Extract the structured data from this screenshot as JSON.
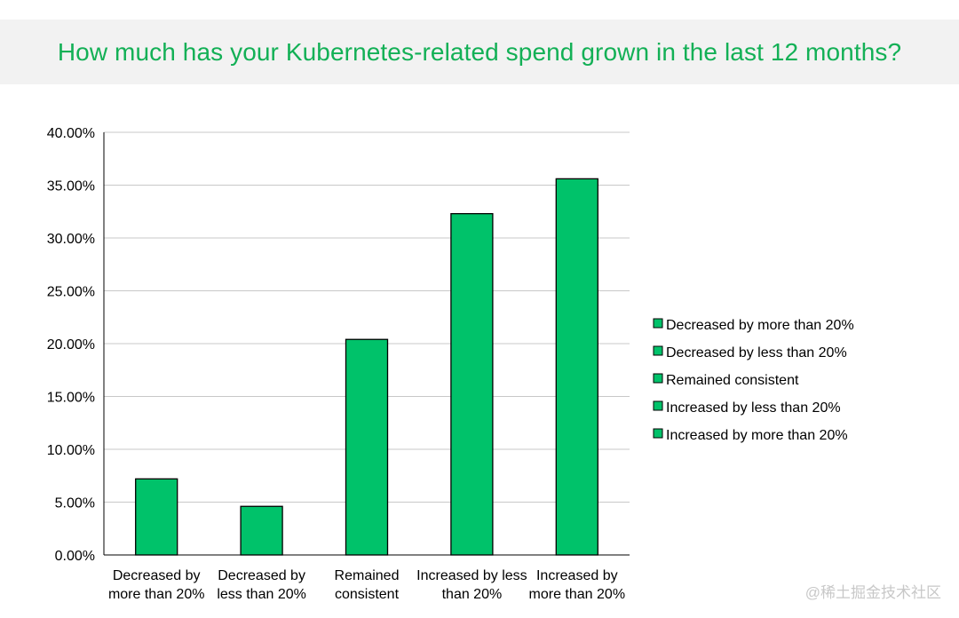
{
  "header": {
    "title": "How much has your Kubernetes-related spend grown in the last 12 months?"
  },
  "watermark": "@稀土掘金技术社区",
  "colors": {
    "title": "#13b056",
    "bar_fill": "#00c26a",
    "bar_stroke": "#000000",
    "grid": "#c8c8c8",
    "header_bg": "#f2f2f2"
  },
  "chart_data": {
    "type": "bar",
    "categories": [
      [
        "Decreased by",
        "more than 20%"
      ],
      [
        "Decreased by",
        "less than 20%"
      ],
      [
        "Remained",
        "consistent"
      ],
      [
        "Increased by less",
        "than 20%"
      ],
      [
        "Increased by",
        "more than 20%"
      ]
    ],
    "values": [
      7.2,
      4.6,
      20.4,
      32.3,
      35.6
    ],
    "ylim": [
      0,
      40
    ],
    "yticks": [
      "0.00%",
      "5.00%",
      "10.00%",
      "15.00%",
      "20.00%",
      "25.00%",
      "30.00%",
      "35.00%",
      "40.00%"
    ],
    "grid": true,
    "legend": {
      "position": "right",
      "entries": [
        "Decreased by more than 20%",
        "Decreased by less than 20%",
        "Remained consistent",
        "Increased by less than 20%",
        "Increased by more than 20%"
      ]
    }
  }
}
